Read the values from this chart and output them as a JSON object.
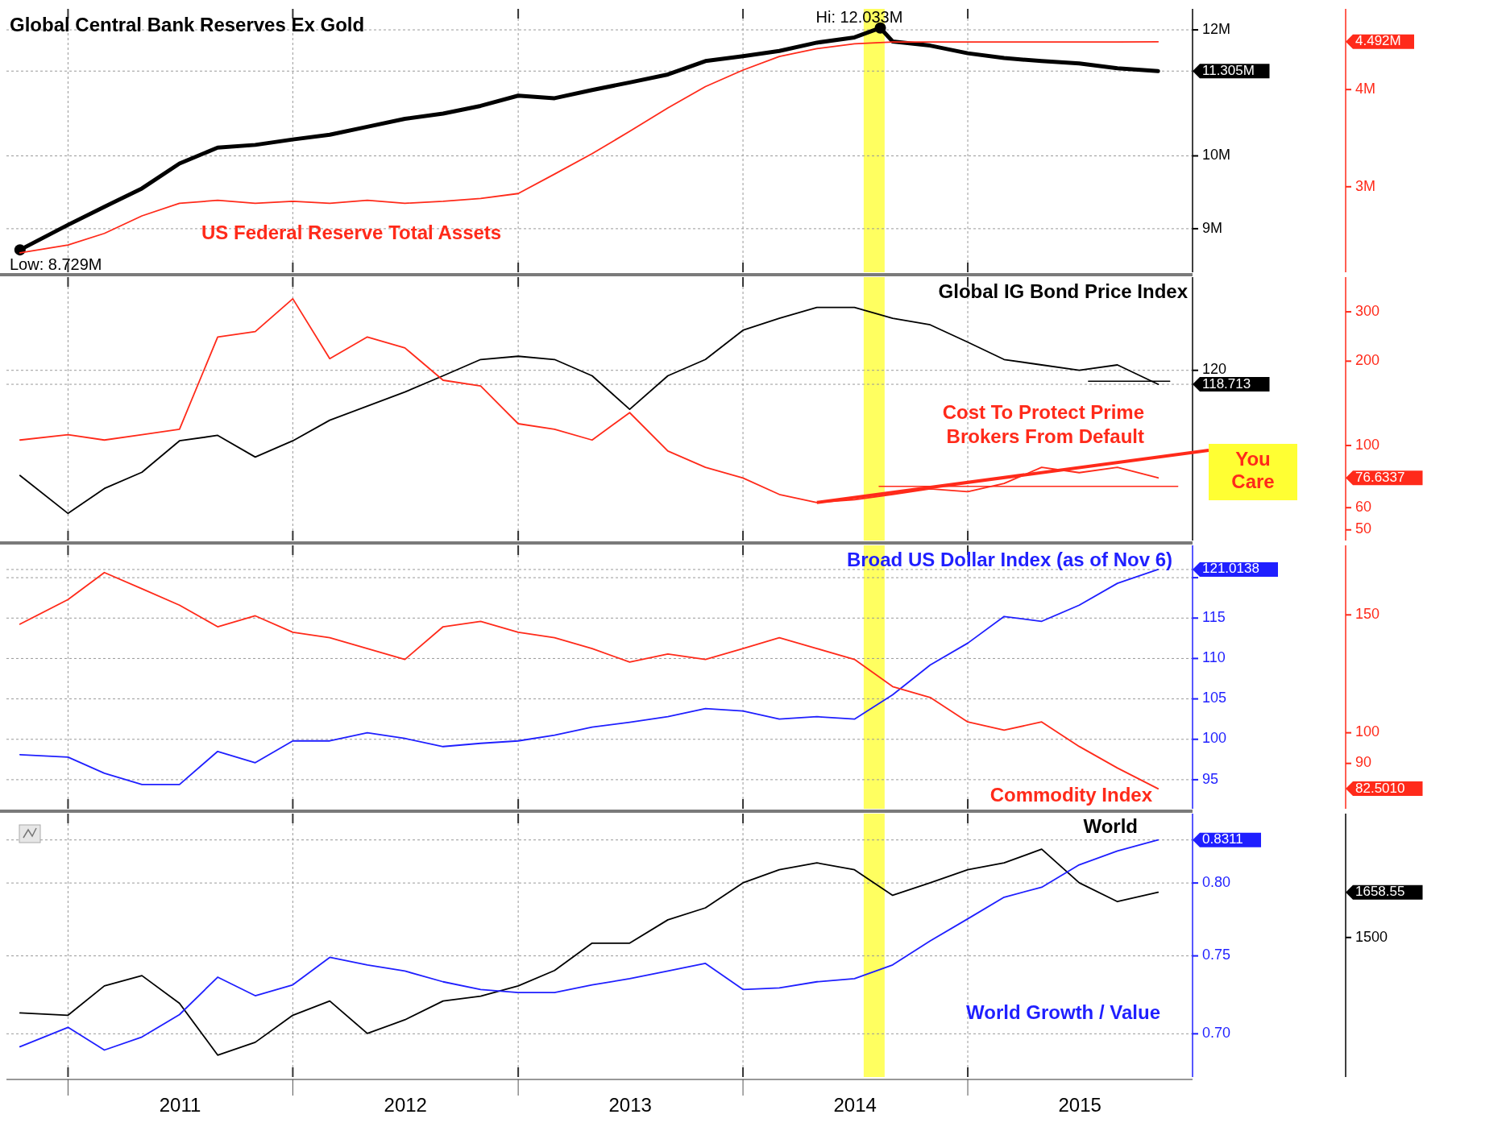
{
  "chart_data": [
    {
      "type": "line",
      "x": [
        "2010-10-15",
        "2011-01",
        "2011-03",
        "2011-05",
        "2011-07",
        "2011-09",
        "2011-11",
        "2012-01",
        "2012-03",
        "2012-05",
        "2012-07",
        "2012-09",
        "2012-11",
        "2013-01",
        "2013-03",
        "2013-05",
        "2013-07",
        "2013-09",
        "2013-11",
        "2014-01",
        "2014-03",
        "2014-05",
        "2014-07",
        "2014-09",
        "2014-11",
        "2015-01",
        "2015-03",
        "2015-05",
        "2015-07",
        "2015-09",
        "2015-11-06"
      ],
      "xlim": [
        "2010-09-23",
        "2016-01-01"
      ],
      "xticks": [
        {
          "value": "2011-01-01",
          "label": null
        },
        {
          "value": "2012-01-01",
          "label": null
        },
        {
          "value": "2013-01-01",
          "label": null
        },
        {
          "value": "2014-01-01",
          "label": null
        },
        {
          "value": "2015-01-01",
          "label": null
        }
      ],
      "ylim": [
        8.45,
        12.37
      ],
      "yticks": [
        {
          "value": 9,
          "label": "9M"
        },
        {
          "value": 10,
          "label": "10M"
        },
        {
          "value": 11.305,
          "label": "11.305M"
        },
        {
          "value": 12,
          "label": "12M"
        }
      ],
      "y2lim": [
        2.12,
        4.83
      ],
      "y2ticks": [
        {
          "value": 3,
          "label": "3M"
        },
        {
          "value": 4,
          "label": "4M"
        },
        {
          "value": 4.492,
          "label": "4.492M"
        }
      ],
      "log": "y",
      "grid": true,
      "tick_labels": "y",
      "bands": [
        {
          "axis": "x",
          "from": "2014-07-16",
          "to": "2014-08-19",
          "color": "#ffff44"
        }
      ],
      "annotations": [
        {
          "text": "Low: 8.729M",
          "x": "2010-10-15",
          "y": 8.729
        },
        {
          "text": "Hi: 12.033M",
          "x": "2014-08-12",
          "y": 12.033
        }
      ],
      "series": [
        {
          "name": "Global Central Bank Reserves Ex Gold",
          "color": "#000000",
          "x": [
            "2010-10-15",
            "2011-01",
            "2011-03",
            "2011-05",
            "2011-07",
            "2011-09",
            "2011-11",
            "2012-01",
            "2012-03",
            "2012-05",
            "2012-07",
            "2012-09",
            "2012-11",
            "2013-01",
            "2013-03",
            "2013-05",
            "2013-07",
            "2013-09",
            "2013-11",
            "2014-01",
            "2014-03",
            "2014-05",
            "2014-07",
            "2014-08-12",
            "2014-09",
            "2014-11",
            "2015-01",
            "2015-03",
            "2015-05",
            "2015-07",
            "2015-09",
            "2015-11-06"
          ],
          "values": [
            8.729,
            9.05,
            9.29,
            9.54,
            9.89,
            10.12,
            10.16,
            10.24,
            10.31,
            10.43,
            10.55,
            10.63,
            10.75,
            10.91,
            10.87,
            11.0,
            11.12,
            11.25,
            11.47,
            11.55,
            11.64,
            11.78,
            11.87,
            12.033,
            11.8,
            11.73,
            11.6,
            11.52,
            11.47,
            11.43,
            11.35,
            11.305
          ]
        },
        {
          "name": "US Federal Reserve Total Assets",
          "color": "#ff2a1a",
          "axis": "y2",
          "values": [
            2.32,
            2.4,
            2.52,
            2.7,
            2.83,
            2.86,
            2.83,
            2.85,
            2.83,
            2.86,
            2.83,
            2.85,
            2.88,
            2.93,
            3.13,
            3.34,
            3.57,
            3.81,
            4.03,
            4.2,
            4.34,
            4.42,
            4.47,
            4.49,
            4.49,
            4.49,
            4.49,
            4.49,
            4.49,
            4.49,
            4.492
          ]
        }
      ]
    },
    {
      "type": "line",
      "x": [
        "2010-10-15",
        "2011-01",
        "2011-03",
        "2011-05",
        "2011-07",
        "2011-09",
        "2011-11",
        "2012-01",
        "2012-03",
        "2012-05",
        "2012-07",
        "2012-09",
        "2012-11",
        "2013-01",
        "2013-03",
        "2013-05",
        "2013-07",
        "2013-09",
        "2013-11",
        "2014-01",
        "2014-03",
        "2014-05",
        "2014-07",
        "2014-09",
        "2014-11",
        "2015-01",
        "2015-03",
        "2015-05",
        "2015-07",
        "2015-09",
        "2015-11-06"
      ],
      "xlim": [
        "2010-09-23",
        "2016-01-01"
      ],
      "xticks": [
        {
          "value": "2011-01-01",
          "label": null
        },
        {
          "value": "2012-01-01",
          "label": null
        },
        {
          "value": "2013-01-01",
          "label": null
        },
        {
          "value": "2014-01-01",
          "label": null
        },
        {
          "value": "2015-01-01",
          "label": null
        }
      ],
      "ylim": [
        104.3,
        128.6
      ],
      "yticks": [
        118.713,
        120
      ],
      "y2lim": [
        45.8,
        399
      ],
      "y2ticks": [
        50,
        60,
        76.6337,
        100,
        200,
        300
      ],
      "log": "y2",
      "grid": true,
      "tick_labels": "y",
      "bands": [
        {
          "axis": "x",
          "from": "2014-07-16",
          "to": "2014-08-19",
          "color": "#ffff44"
        }
      ],
      "annotations": [
        "You Care"
      ],
      "series": [
        {
          "name": "Global IG Bond Price Index",
          "color": "#000000",
          "values": [
            110.3,
            106.8,
            109.1,
            110.6,
            113.5,
            114.0,
            112.0,
            113.5,
            115.4,
            116.7,
            118.0,
            119.5,
            121.0,
            121.3,
            121.0,
            119.5,
            116.4,
            119.5,
            121.0,
            123.7,
            124.8,
            125.8,
            125.8,
            124.8,
            124.2,
            122.6,
            121.0,
            120.5,
            120.0,
            120.5,
            118.713
          ]
        },
        {
          "name": "Cost To Protect Prime Brokers From Default",
          "color": "#ff2a1a",
          "axis": "y2",
          "values": [
            104.6,
            109.3,
            104.6,
            109.3,
            114.3,
            244,
            255,
            334,
            204,
            244,
            223,
            171,
            163,
            119.6,
            114.3,
            104.6,
            131,
            95.6,
            83.6,
            76.6,
            66.9,
            62.6,
            64.0,
            66.9,
            70.0,
            68.4,
            73.2,
            83.6,
            80.0,
            83.6,
            76.6337
          ]
        },
        {
          "color": "#ff2a1a",
          "axis": "y2",
          "x": [
            "2014-08-10",
            "2015-12-08"
          ],
          "values": [
            71.5,
            71.5
          ]
        },
        {
          "color": "#000000",
          "x": [
            "2015-07-16",
            "2015-11-25"
          ],
          "values": [
            119.0,
            119.0
          ]
        }
      ]
    },
    {
      "type": "line",
      "x": [
        "2010-10-15",
        "2011-01",
        "2011-03",
        "2011-05",
        "2011-07",
        "2011-09",
        "2011-11",
        "2012-01",
        "2012-03",
        "2012-05",
        "2012-07",
        "2012-09",
        "2012-11",
        "2013-01",
        "2013-03",
        "2013-05",
        "2013-07",
        "2013-09",
        "2013-11",
        "2014-01",
        "2014-03",
        "2014-05",
        "2014-07",
        "2014-09",
        "2014-11",
        "2015-01",
        "2015-03",
        "2015-05",
        "2015-07",
        "2015-09",
        "2015-11-06"
      ],
      "xlim": [
        "2010-09-23",
        "2016-01-01"
      ],
      "xticks": [
        {
          "value": "2011-01-01",
          "label": null
        },
        {
          "value": "2012-01-01",
          "label": null
        },
        {
          "value": "2013-01-01",
          "label": null
        },
        {
          "value": "2014-01-01",
          "label": null
        },
        {
          "value": "2015-01-01",
          "label": null
        }
      ],
      "ylim": [
        91.4,
        124.0
      ],
      "yticks": [
        95,
        100,
        105,
        110,
        115,
        {
          "value": 120,
          "label": null
        },
        121.0138
      ],
      "y2lim": [
        77.0,
        190.5
      ],
      "y2ticks": [
        {
          "value": 82.501,
          "label": "82.5010"
        },
        90,
        100,
        150
      ],
      "log": "y2",
      "grid": true,
      "tick_labels": "y",
      "bands": [
        {
          "axis": "x",
          "from": "2014-07-16",
          "to": "2014-08-19",
          "color": "#ffff44"
        }
      ],
      "series": [
        {
          "name": "Broad US Dollar Index (as of Nov 6)",
          "color": "#1f1fff",
          "values": [
            98.1,
            97.8,
            95.8,
            94.4,
            94.4,
            98.5,
            97.1,
            99.8,
            99.8,
            100.8,
            100.1,
            99.1,
            99.5,
            99.8,
            100.5,
            101.5,
            102.1,
            102.8,
            103.8,
            103.5,
            102.5,
            102.8,
            102.5,
            105.5,
            109.2,
            111.9,
            115.2,
            114.6,
            116.6,
            119.3,
            121.0138
          ]
        },
        {
          "name": "Commodity Index",
          "color": "#ff2a1a",
          "axis": "y2",
          "values": [
            145.3,
            158.1,
            173.5,
            164.1,
            155.1,
            144.0,
            149.5,
            141.3,
            138.7,
            133.6,
            128.7,
            144.0,
            146.7,
            141.3,
            138.7,
            133.6,
            127.5,
            131.1,
            128.7,
            133.6,
            138.7,
            133.6,
            128.7,
            117.2,
            112.9,
            103.8,
            100.9,
            103.8,
            95.4,
            88.6,
            82.501
          ]
        }
      ]
    },
    {
      "type": "line",
      "x": [
        "2010-10-15",
        "2011-01",
        "2011-03",
        "2011-05",
        "2011-07",
        "2011-09",
        "2011-11",
        "2012-01",
        "2012-03",
        "2012-05",
        "2012-07",
        "2012-09",
        "2012-11",
        "2013-01",
        "2013-03",
        "2013-05",
        "2013-07",
        "2013-09",
        "2013-11",
        "2014-01",
        "2014-03",
        "2014-05",
        "2014-07",
        "2014-09",
        "2014-11",
        "2015-01",
        "2015-03",
        "2015-05",
        "2015-07",
        "2015-09",
        "2015-11-06"
      ],
      "xlim": [
        "2010-09-23",
        "2016-01-01"
      ],
      "xticks": [
        {
          "value": "2011-01-01",
          "label": null
        },
        {
          "value": "2011-07-02",
          "label": "2011"
        },
        {
          "value": "2012-01-01",
          "label": null
        },
        {
          "value": "2012-07-02",
          "label": "2012"
        },
        {
          "value": "2013-01-01",
          "label": null
        },
        {
          "value": "2013-07-02",
          "label": "2013"
        },
        {
          "value": "2014-01-01",
          "label": null
        },
        {
          "value": "2014-07-02",
          "label": "2014"
        },
        {
          "value": "2015-01-01",
          "label": null
        },
        {
          "value": "2015-07-02",
          "label": "2015"
        }
      ],
      "ylim": [
        0.6737,
        0.8507
      ],
      "yticks": [
        {
          "value": 0.7,
          "label": "0.70"
        },
        0.75,
        {
          "value": 0.8,
          "label": "0.80"
        },
        0.8311
      ],
      "y2lim": [
        1010,
        1935
      ],
      "y2ticks": [
        1500,
        1658.55
      ],
      "log": "y",
      "grid": true,
      "bands": [
        {
          "axis": "x",
          "from": "2014-07-16",
          "to": "2014-08-19",
          "color": "#ffff44"
        }
      ],
      "series": [
        {
          "name": "World",
          "color": "#000000",
          "axis": "y2",
          "values": [
            1235,
            1227,
            1330,
            1366,
            1269,
            1087,
            1132,
            1227,
            1277,
            1163,
            1211,
            1277,
            1294,
            1330,
            1384,
            1480,
            1480,
            1562,
            1604,
            1692,
            1738,
            1762,
            1738,
            1648,
            1692,
            1738,
            1762,
            1810,
            1692,
            1626,
            1658.55
          ]
        },
        {
          "name": "World Growth / Value",
          "color": "#1f1fff",
          "values": [
            0.692,
            0.704,
            0.69,
            0.698,
            0.712,
            0.736,
            0.724,
            0.731,
            0.749,
            0.744,
            0.74,
            0.733,
            0.728,
            0.726,
            0.726,
            0.731,
            0.735,
            0.74,
            0.745,
            0.728,
            0.729,
            0.733,
            0.735,
            0.744,
            0.76,
            0.775,
            0.79,
            0.797,
            0.813,
            0.823,
            0.8311
          ]
        }
      ]
    }
  ]
}
